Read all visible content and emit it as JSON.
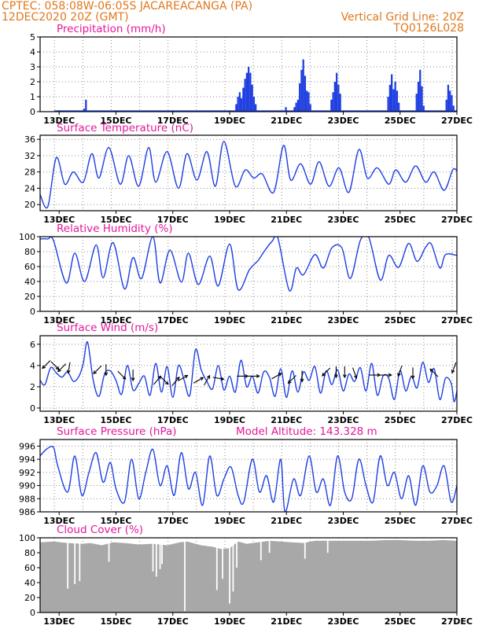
{
  "header": {
    "line1_left": "CPTEC:   058:08W-06:05S  JACAREACANGA (PA)",
    "line2_left": "12DEC2020 20Z (GMT)",
    "line2_right": "Vertical Grid Line: 20Z",
    "line3_right": "TQ0126L028"
  },
  "colors": {
    "header": "#e0781e",
    "title": "#e4179c",
    "line": "#1f3fe0",
    "cloud": "#a8a8a8",
    "grid": "#8a8a8a"
  },
  "chart_data": [
    {
      "type": "bar",
      "title": "Precipitation (mm/h)",
      "x_ticks": [
        "13DEC",
        "15DEC",
        "17DEC",
        "19DEC",
        "21DEC",
        "23DEC",
        "25DEC",
        "27DEC"
      ],
      "ylim": [
        0,
        5
      ],
      "y_ticks": [
        0,
        1,
        2,
        3,
        4,
        5
      ],
      "x_start_day": 12.83,
      "step_days": 0.125,
      "bursts": [
        {
          "day": 13.85,
          "values": [
            0.2,
            0.8
          ]
        },
        {
          "day": 19.2,
          "values": [
            0.5,
            1.0,
            1.3,
            0.9,
            1.6,
            2.2,
            2.6,
            3.0,
            2.6,
            1.8,
            1.0,
            0.5
          ]
        },
        {
          "day": 20.95,
          "values": [
            0.3
          ]
        },
        {
          "day": 21.25,
          "values": [
            0.3,
            0.6,
            0.8,
            1.9,
            2.8,
            3.5,
            2.4,
            1.4,
            1.3,
            0.5
          ]
        },
        {
          "day": 22.55,
          "values": [
            0.8,
            1.3,
            2.0,
            2.6,
            1.8,
            1.2
          ]
        },
        {
          "day": 24.55,
          "values": [
            1.0,
            1.8,
            2.5,
            1.5,
            2.0,
            1.4,
            0.6
          ]
        },
        {
          "day": 25.55,
          "values": [
            1.2,
            2.0,
            2.8,
            1.7,
            0.4
          ]
        },
        {
          "day": 26.6,
          "values": [
            0.8,
            1.8,
            1.4,
            1.1,
            0.4
          ]
        }
      ]
    },
    {
      "type": "line",
      "title": "Surface Temperature (nC)",
      "x_ticks": [
        "13DEC",
        "15DEC",
        "17DEC",
        "19DEC",
        "21DEC",
        "23DEC",
        "25DEC",
        "27DEC"
      ],
      "ylim": [
        18.5,
        37
      ],
      "y_ticks": [
        20,
        24,
        28,
        32,
        36
      ],
      "x": [
        12.33,
        12.6,
        12.9,
        13.2,
        13.5,
        13.85,
        14.15,
        14.4,
        14.75,
        15.15,
        15.45,
        15.8,
        16.15,
        16.4,
        16.8,
        17.2,
        17.5,
        17.85,
        18.2,
        18.5,
        18.8,
        19.2,
        19.55,
        19.85,
        20.15,
        20.55,
        20.9,
        21.15,
        21.5,
        21.85,
        22.15,
        22.5,
        22.85,
        23.2,
        23.55,
        23.85,
        24.2,
        24.6,
        24.85,
        25.2,
        25.55,
        25.9,
        26.2,
        26.55,
        26.85,
        27.0
      ],
      "y": [
        22.5,
        19.5,
        31.5,
        25,
        28,
        25.5,
        32.5,
        26.5,
        34,
        25,
        32,
        24.5,
        34,
        25.5,
        33,
        24,
        32.5,
        26,
        33,
        24.5,
        35.5,
        24.5,
        28.5,
        26.5,
        27.5,
        23,
        34.5,
        26,
        30,
        25,
        30.5,
        24.5,
        29,
        23,
        33.5,
        26.5,
        29,
        25,
        28.5,
        25.5,
        29.5,
        25.5,
        28,
        23.5,
        28.5,
        28.3
      ]
    },
    {
      "type": "line",
      "title": "Relative Humidity (%)",
      "x_ticks": [
        "13DEC",
        "15DEC",
        "17DEC",
        "19DEC",
        "21DEC",
        "23DEC",
        "25DEC",
        "27DEC"
      ],
      "ylim": [
        0,
        100
      ],
      "y_ticks": [
        0,
        20,
        40,
        60,
        80,
        100
      ],
      "x": [
        12.33,
        12.6,
        12.8,
        13.25,
        13.55,
        13.9,
        14.3,
        14.55,
        14.9,
        15.3,
        15.6,
        15.9,
        16.3,
        16.55,
        16.9,
        17.3,
        17.55,
        17.9,
        18.3,
        18.6,
        19.0,
        19.3,
        19.7,
        20.0,
        20.25,
        20.5,
        20.7,
        21.1,
        21.35,
        21.6,
        22.0,
        22.3,
        22.6,
        22.95,
        23.25,
        23.6,
        23.9,
        24.3,
        24.6,
        24.95,
        25.3,
        25.6,
        25.9,
        26.1,
        26.4,
        26.6,
        27.0
      ],
      "y": [
        97,
        97,
        95,
        38,
        78,
        40,
        89,
        45,
        92,
        30,
        72,
        44,
        100,
        38,
        82,
        39,
        78,
        36,
        74,
        34,
        90,
        29,
        56,
        68,
        82,
        94,
        98,
        28,
        58,
        49,
        76,
        58,
        85,
        85,
        44,
        95,
        99,
        42,
        75,
        59,
        91,
        67,
        86,
        90,
        58,
        76,
        75
      ]
    },
    {
      "type": "line",
      "title": "Surface Wind (m/s)",
      "x_ticks": [
        "13DEC",
        "15DEC",
        "17DEC",
        "19DEC",
        "21DEC",
        "23DEC",
        "25DEC",
        "27DEC"
      ],
      "ylim": [
        -0.3,
        6.8
      ],
      "y_ticks": [
        0,
        2,
        4,
        6
      ],
      "x": [
        12.33,
        12.5,
        12.7,
        12.9,
        13.1,
        13.3,
        13.5,
        13.7,
        13.85,
        14.0,
        14.2,
        14.4,
        14.6,
        14.8,
        15.0,
        15.2,
        15.4,
        15.6,
        15.8,
        16.0,
        16.2,
        16.4,
        16.6,
        16.8,
        17.0,
        17.2,
        17.4,
        17.6,
        17.8,
        18.0,
        18.2,
        18.4,
        18.6,
        18.8,
        19.0,
        19.2,
        19.4,
        19.6,
        19.8,
        20.0,
        20.2,
        20.4,
        20.6,
        20.8,
        21.0,
        21.2,
        21.4,
        21.6,
        21.8,
        22.0,
        22.2,
        22.4,
        22.6,
        22.8,
        23.0,
        23.2,
        23.4,
        23.6,
        23.8,
        24.0,
        24.2,
        24.4,
        24.6,
        24.8,
        25.0,
        25.2,
        25.4,
        25.6,
        25.8,
        26.0,
        26.2,
        26.4,
        26.6,
        26.8,
        26.9,
        27.0
      ],
      "y": [
        2.6,
        2.2,
        3.8,
        3.3,
        2.9,
        3.4,
        2.5,
        3.0,
        4.2,
        6.2,
        2.6,
        1.1,
        3.2,
        3.5,
        2.6,
        1.3,
        4.0,
        1.7,
        2.3,
        3.0,
        1.2,
        4.2,
        1.5,
        3.9,
        1.0,
        4.0,
        2.6,
        1.2,
        5.5,
        3.6,
        2.5,
        1.8,
        4.0,
        1.7,
        3.0,
        1.5,
        4.5,
        2.0,
        3.0,
        1.4,
        3.4,
        2.9,
        1.1,
        3.7,
        1.0,
        3.5,
        1.5,
        3.4,
        2.6,
        3.9,
        1.4,
        3.5,
        2.2,
        3.6,
        1.6,
        3.2,
        2.5,
        3.8,
        1.6,
        4.2,
        1.2,
        3.0,
        2.8,
        0.8,
        3.5,
        1.6,
        3.0,
        1.9,
        4.3,
        2.4,
        3.7,
        0.8,
        2.8,
        2.3,
        0.6,
        1.6
      ],
      "arrows": [
        {
          "x": 12.55,
          "y": 4.1,
          "deg": 225
        },
        {
          "x": 12.85,
          "y": 4.0,
          "deg": 135
        },
        {
          "x": 13.1,
          "y": 3.8,
          "deg": 225
        },
        {
          "x": 13.35,
          "y": 3.8,
          "deg": 190
        },
        {
          "x": 14.35,
          "y": 3.6,
          "deg": 225
        },
        {
          "x": 14.65,
          "y": 3.6,
          "deg": 180
        },
        {
          "x": 15.2,
          "y": 3.1,
          "deg": 135
        },
        {
          "x": 15.6,
          "y": 3.1,
          "deg": 180
        },
        {
          "x": 16.45,
          "y": 2.6,
          "deg": 40
        },
        {
          "x": 16.7,
          "y": 2.6,
          "deg": 135
        },
        {
          "x": 17.1,
          "y": 2.5,
          "deg": 40
        },
        {
          "x": 17.35,
          "y": 2.8,
          "deg": 60
        },
        {
          "x": 17.9,
          "y": 2.6,
          "deg": 60
        },
        {
          "x": 18.2,
          "y": 2.6,
          "deg": 30
        },
        {
          "x": 18.6,
          "y": 2.8,
          "deg": 100
        },
        {
          "x": 19.45,
          "y": 3.0,
          "deg": 90
        },
        {
          "x": 19.85,
          "y": 3.0,
          "deg": 90
        },
        {
          "x": 20.65,
          "y": 3.0,
          "deg": 60
        },
        {
          "x": 21.2,
          "y": 2.7,
          "deg": 225
        },
        {
          "x": 21.55,
          "y": 3.0,
          "deg": 180
        },
        {
          "x": 22.4,
          "y": 3.4,
          "deg": 225
        },
        {
          "x": 22.75,
          "y": 3.4,
          "deg": 180
        },
        {
          "x": 23.05,
          "y": 3.4,
          "deg": 180
        },
        {
          "x": 23.4,
          "y": 3.3,
          "deg": 160
        },
        {
          "x": 24.1,
          "y": 3.1,
          "deg": 90
        },
        {
          "x": 24.5,
          "y": 3.1,
          "deg": 90
        },
        {
          "x": 25.0,
          "y": 3.5,
          "deg": 200
        },
        {
          "x": 25.45,
          "y": 3.3,
          "deg": 180
        },
        {
          "x": 26.2,
          "y": 3.3,
          "deg": 315
        },
        {
          "x": 26.9,
          "y": 3.8,
          "deg": 200
        }
      ]
    },
    {
      "type": "line",
      "title": "Surface Pressure (hPa)",
      "annotation": "Model Altitude: 143.328 m",
      "x_ticks": [
        "13DEC",
        "15DEC",
        "17DEC",
        "19DEC",
        "21DEC",
        "23DEC",
        "25DEC",
        "27DEC"
      ],
      "ylim": [
        986,
        997
      ],
      "y_ticks": [
        986,
        988,
        990,
        992,
        994,
        996
      ],
      "x": [
        12.33,
        12.55,
        12.8,
        12.95,
        13.3,
        13.55,
        13.8,
        14.05,
        14.3,
        14.55,
        14.8,
        15.0,
        15.3,
        15.55,
        15.8,
        16.05,
        16.3,
        16.55,
        16.8,
        17.05,
        17.3,
        17.55,
        17.8,
        18.05,
        18.3,
        18.55,
        18.8,
        19.05,
        19.3,
        19.5,
        19.8,
        20.05,
        20.3,
        20.55,
        20.8,
        20.95,
        21.25,
        21.5,
        21.8,
        22.05,
        22.3,
        22.55,
        22.8,
        23.05,
        23.3,
        23.55,
        23.8,
        24.05,
        24.3,
        24.55,
        24.8,
        25.05,
        25.3,
        25.55,
        25.8,
        26.05,
        26.3,
        26.55,
        26.8,
        27.0
      ],
      "y": [
        994.5,
        995.5,
        995.8,
        993.0,
        989.0,
        994.5,
        988.5,
        992.0,
        995.0,
        990.5,
        993.5,
        989.5,
        987.5,
        994.0,
        988.0,
        992.0,
        995.5,
        990.0,
        993.0,
        988.5,
        995.0,
        989.5,
        992.0,
        987.0,
        994.5,
        988.5,
        991.0,
        992.8,
        988.5,
        987.5,
        994.0,
        989.0,
        991.5,
        987.5,
        994.0,
        986.0,
        991.0,
        988.5,
        994.5,
        989.0,
        991.0,
        987.0,
        994.5,
        989.0,
        988.0,
        994.0,
        990.0,
        987.5,
        994.5,
        990.0,
        992.0,
        988.0,
        991.5,
        987.0,
        993.0,
        989.0,
        990.0,
        993.0,
        987.5,
        990.0
      ]
    },
    {
      "type": "area",
      "title": "Cloud Cover (%)",
      "x_ticks": [
        "13DEC",
        "15DEC",
        "17DEC",
        "19DEC",
        "21DEC",
        "23DEC",
        "25DEC",
        "27DEC"
      ],
      "ylim": [
        0,
        100
      ],
      "y_ticks": [
        0,
        20,
        40,
        60,
        80,
        100
      ],
      "x": [
        12.33,
        12.8,
        13.3,
        13.8,
        14.1,
        14.5,
        14.9,
        15.3,
        15.8,
        16.3,
        16.8,
        17.25,
        17.5,
        18.0,
        18.4,
        18.7,
        19.0,
        19.3,
        19.6,
        20.0,
        20.4,
        20.8,
        21.2,
        21.6,
        22.0,
        22.5,
        23.0,
        23.5,
        24.0,
        24.5,
        25.0,
        25.5,
        26.0,
        26.5,
        27.0
      ],
      "y": [
        94,
        95,
        93,
        92,
        93,
        90,
        94,
        93,
        91,
        92,
        90,
        94,
        95,
        90,
        88,
        85,
        86,
        95,
        92,
        94,
        96,
        95,
        94,
        93,
        96,
        96,
        96,
        96,
        96,
        97,
        97,
        96,
        96,
        97,
        96
      ],
      "dips": [
        {
          "x": 13.3,
          "y": 32
        },
        {
          "x": 13.55,
          "y": 38
        },
        {
          "x": 13.72,
          "y": 42
        },
        {
          "x": 14.75,
          "y": 68
        },
        {
          "x": 16.3,
          "y": 55
        },
        {
          "x": 16.42,
          "y": 48
        },
        {
          "x": 16.55,
          "y": 58
        },
        {
          "x": 16.62,
          "y": 65
        },
        {
          "x": 17.42,
          "y": 2
        },
        {
          "x": 18.55,
          "y": 30
        },
        {
          "x": 18.75,
          "y": 45
        },
        {
          "x": 19.0,
          "y": 12
        },
        {
          "x": 19.12,
          "y": 28
        },
        {
          "x": 19.25,
          "y": 60
        },
        {
          "x": 20.1,
          "y": 70
        },
        {
          "x": 20.4,
          "y": 80
        },
        {
          "x": 21.65,
          "y": 72
        },
        {
          "x": 22.45,
          "y": 80
        }
      ]
    }
  ]
}
